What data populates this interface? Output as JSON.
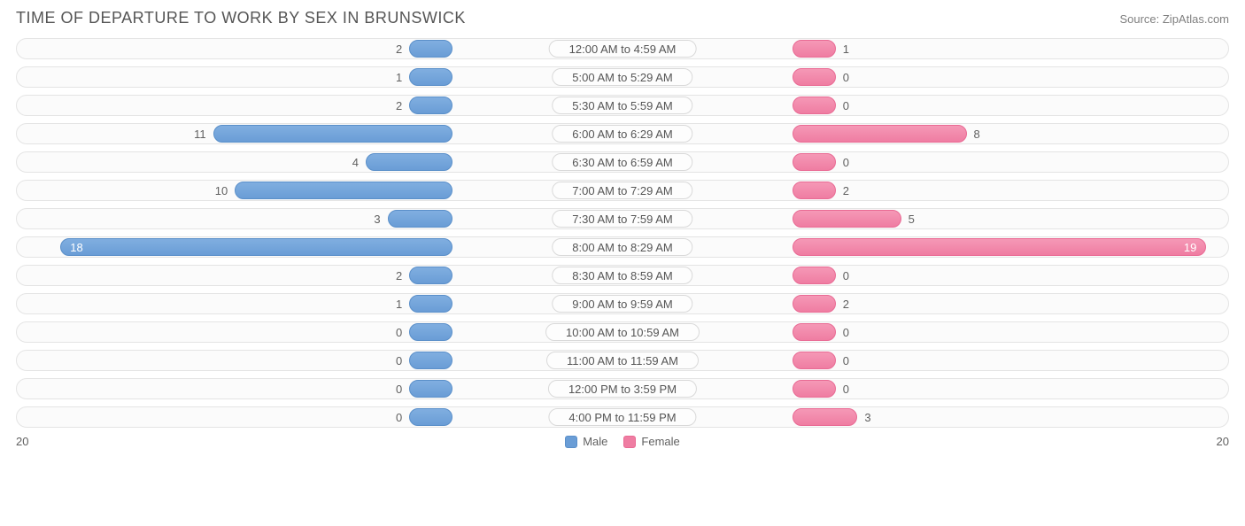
{
  "title": "TIME OF DEPARTURE TO WORK BY SEX IN BRUNSWICK",
  "source": "Source: ZipAtlas.com",
  "chart": {
    "type": "diverging-bar",
    "axis_max": 20,
    "axis_left_label": "20",
    "axis_right_label": "20",
    "min_bar_units": 2.0,
    "center_label_half_units": 2.8,
    "colors": {
      "male_bar": "#6a9dd6",
      "male_border": "#5a8fc9",
      "female_bar": "#ef7da2",
      "female_border": "#e96a94",
      "track_bg": "#fbfbfb",
      "track_border": "#e4e4e4",
      "text": "#555555",
      "value_text": "#606060",
      "inside_text": "#ffffff"
    },
    "legend": {
      "male": "Male",
      "female": "Female"
    },
    "rows": [
      {
        "label": "12:00 AM to 4:59 AM",
        "male": 2,
        "female": 1
      },
      {
        "label": "5:00 AM to 5:29 AM",
        "male": 1,
        "female": 0
      },
      {
        "label": "5:30 AM to 5:59 AM",
        "male": 2,
        "female": 0
      },
      {
        "label": "6:00 AM to 6:29 AM",
        "male": 11,
        "female": 8
      },
      {
        "label": "6:30 AM to 6:59 AM",
        "male": 4,
        "female": 0
      },
      {
        "label": "7:00 AM to 7:29 AM",
        "male": 10,
        "female": 2
      },
      {
        "label": "7:30 AM to 7:59 AM",
        "male": 3,
        "female": 5
      },
      {
        "label": "8:00 AM to 8:29 AM",
        "male": 18,
        "female": 19
      },
      {
        "label": "8:30 AM to 8:59 AM",
        "male": 2,
        "female": 0
      },
      {
        "label": "9:00 AM to 9:59 AM",
        "male": 1,
        "female": 2
      },
      {
        "label": "10:00 AM to 10:59 AM",
        "male": 0,
        "female": 0
      },
      {
        "label": "11:00 AM to 11:59 AM",
        "male": 0,
        "female": 0
      },
      {
        "label": "12:00 PM to 3:59 PM",
        "male": 0,
        "female": 0
      },
      {
        "label": "4:00 PM to 11:59 PM",
        "male": 0,
        "female": 3
      }
    ]
  }
}
